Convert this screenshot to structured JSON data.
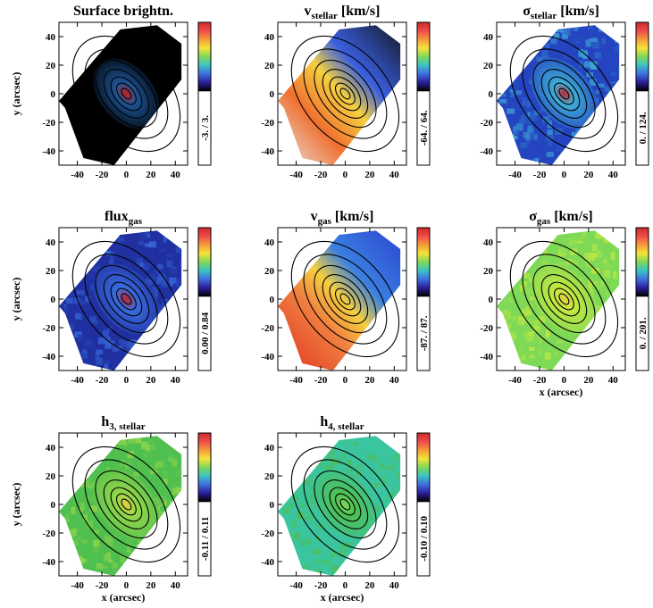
{
  "figure": {
    "colorbar_gradient": [
      "#cc2a2a",
      "#f04b4b",
      "#f59a3a",
      "#f5e33a",
      "#7ed957",
      "#3bc4c4",
      "#3f6fe0",
      "#2a1f9a",
      "#000000"
    ],
    "axis_ticks": [
      "-40",
      "-20",
      "0",
      "20",
      "40"
    ],
    "xlabel": "x (arcsec)",
    "ylabel": "y (arcsec)"
  },
  "chart_data": [
    {
      "type": "heatmap",
      "id": "surface",
      "title_main": "Surface brightn.",
      "title_sub": "",
      "title_units": "",
      "cbar_min": "-3.",
      "cbar_sep": "/",
      "cbar_max": "3.",
      "fill_low": "#000000",
      "fill_mid": "#1f5aa0",
      "fill_high": "#d02020",
      "style": "sb",
      "show_ylabel": true,
      "show_xlabel": false,
      "xlim": [
        -55,
        50
      ],
      "ylim": [
        -50,
        50
      ]
    },
    {
      "type": "heatmap",
      "id": "vstellar",
      "title_main": "v",
      "title_sub": "stellar",
      "title_units": " [km/s]",
      "cbar_min": "-64.",
      "cbar_sep": "/",
      "cbar_max": "64.",
      "fill_low": "#000000",
      "fill_mid": "#f5a040",
      "fill_high": "#e03030",
      "style": "vel",
      "show_ylabel": false,
      "show_xlabel": false,
      "xlim": [
        -55,
        50
      ],
      "ylim": [
        -50,
        50
      ]
    },
    {
      "type": "heatmap",
      "id": "sstellar",
      "title_main": "σ",
      "title_sub": "stellar",
      "title_units": " [km/s]",
      "cbar_min": "0.",
      "cbar_sep": "/",
      "cbar_max": "124.",
      "fill_low": "#2545c0",
      "fill_mid": "#3fb3d8",
      "fill_high": "#d02020",
      "style": "sig",
      "show_ylabel": false,
      "show_xlabel": false,
      "xlim": [
        -55,
        50
      ],
      "ylim": [
        -50,
        50
      ]
    },
    {
      "type": "heatmap",
      "id": "fluxgas",
      "title_main": "flux",
      "title_sub": "gas",
      "title_units": "",
      "cbar_min": "0.00",
      "cbar_sep": "/",
      "cbar_max": "0.84",
      "fill_low": "#2030a0",
      "fill_mid": "#3a6fe0",
      "fill_high": "#d02020",
      "style": "flux",
      "show_ylabel": true,
      "show_xlabel": false,
      "xlim": [
        -55,
        50
      ],
      "ylim": [
        -50,
        50
      ]
    },
    {
      "type": "heatmap",
      "id": "vgas",
      "title_main": "v",
      "title_sub": "gas",
      "title_units": " [km/s]",
      "cbar_min": "-87.",
      "cbar_sep": "/",
      "cbar_max": "87.",
      "fill_low": "#2a3fd0",
      "fill_mid": "#f08040",
      "fill_high": "#e03020",
      "style": "vel2",
      "show_ylabel": false,
      "show_xlabel": false,
      "xlim": [
        -55,
        50
      ],
      "ylim": [
        -50,
        50
      ]
    },
    {
      "type": "heatmap",
      "id": "sgas",
      "title_main": "σ",
      "title_sub": "gas",
      "title_units": " [km/s]",
      "cbar_min": "0.",
      "cbar_sep": "/",
      "cbar_max": "201.",
      "fill_low": "#7ed957",
      "fill_mid": "#c8e840",
      "fill_high": "#e8d040",
      "style": "sig2",
      "show_ylabel": false,
      "show_xlabel": true,
      "xlim": [
        -55,
        50
      ],
      "ylim": [
        -50,
        50
      ]
    },
    {
      "type": "heatmap",
      "id": "h3",
      "title_main": "h",
      "title_sub": "3, stellar",
      "title_units": "",
      "cbar_min": "-0.11",
      "cbar_sep": "/",
      "cbar_max": "0.11",
      "fill_low": "#4fbf4f",
      "fill_mid": "#9ad84a",
      "fill_high": "#e8d040",
      "style": "h3",
      "show_ylabel": true,
      "show_xlabel": true,
      "xlim": [
        -55,
        50
      ],
      "ylim": [
        -50,
        50
      ]
    },
    {
      "type": "heatmap",
      "id": "h4",
      "title_main": "h",
      "title_sub": "4, stellar",
      "title_units": "",
      "cbar_min": "-0.10",
      "cbar_sep": "/",
      "cbar_max": "0.10",
      "fill_low": "#3bc4a0",
      "fill_mid": "#4fbf4f",
      "fill_high": "#7ed957",
      "style": "h4",
      "show_ylabel": false,
      "show_xlabel": true,
      "xlim": [
        -55,
        50
      ],
      "ylim": [
        -50,
        50
      ]
    }
  ]
}
